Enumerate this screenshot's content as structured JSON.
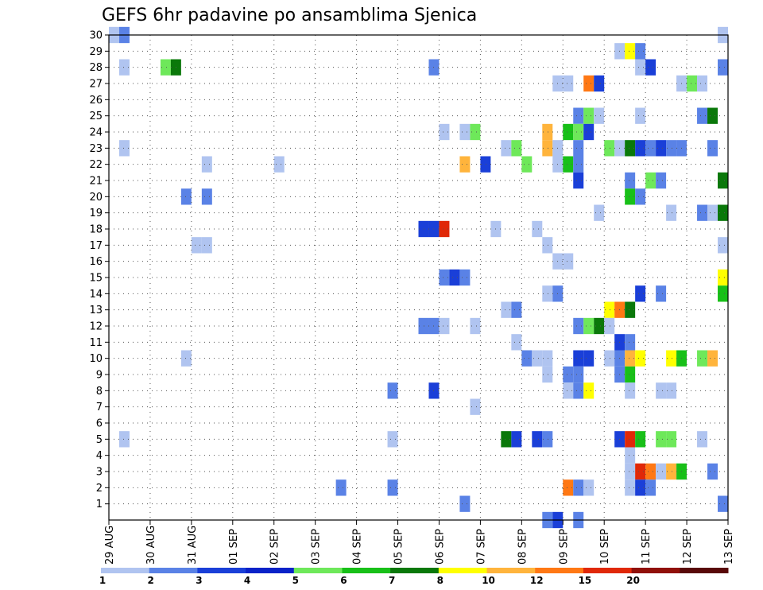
{
  "chart_data": {
    "type": "heatmap",
    "title": "GEFS 6hr padavine po ansamblima Sjenica",
    "xlabel": "",
    "ylabel": "",
    "x_ticks": [
      "29 AUG",
      "30 AUG",
      "31 AUG",
      "01 SEP",
      "02 SEP",
      "03 SEP",
      "04 SEP",
      "05 SEP",
      "06 SEP",
      "07 SEP",
      "08 SEP",
      "09 SEP",
      "10 SEP",
      "11 SEP",
      "12 SEP",
      "13 SEP"
    ],
    "y_ticks": [
      "1",
      "2",
      "3",
      "4",
      "5",
      "6",
      "7",
      "8",
      "9",
      "10",
      "11",
      "12",
      "13",
      "14",
      "15",
      "16",
      "17",
      "18",
      "19",
      "20",
      "21",
      "22",
      "23",
      "24",
      "25",
      "26",
      "27",
      "28",
      "29",
      "30"
    ],
    "ylim": [
      0,
      30
    ],
    "steps_per_day": 4,
    "grid": true,
    "legend": {
      "position": "bottom",
      "labels": [
        "1",
        "2",
        "3",
        "4",
        "5",
        "6",
        "7",
        "8",
        "10",
        "12",
        "15",
        "20"
      ],
      "colors": [
        "#b0c4f0",
        "#5a82e6",
        "#1a3fd8",
        "#0a22c8",
        "#6ee85a",
        "#18c018",
        "#0a780a",
        "#ffff00",
        "#ffb43c",
        "#ff7814",
        "#e02808",
        "#901008",
        "#580808"
      ]
    },
    "cells": [
      {
        "m": 30,
        "t": 0,
        "c": 0
      },
      {
        "m": 30,
        "t": 1,
        "c": 1
      },
      {
        "m": 30,
        "t": 59,
        "c": 0
      },
      {
        "m": 29,
        "t": 49,
        "c": 0
      },
      {
        "m": 29,
        "t": 50,
        "c": 7
      },
      {
        "m": 29,
        "t": 51,
        "c": 1
      },
      {
        "m": 28,
        "t": 1,
        "c": 0
      },
      {
        "m": 28,
        "t": 5,
        "c": 4
      },
      {
        "m": 28,
        "t": 6,
        "c": 6
      },
      {
        "m": 28,
        "t": 31,
        "c": 1
      },
      {
        "m": 28,
        "t": 51,
        "c": 0
      },
      {
        "m": 28,
        "t": 52,
        "c": 2
      },
      {
        "m": 28,
        "t": 59,
        "c": 1
      },
      {
        "m": 27,
        "t": 43,
        "c": 0
      },
      {
        "m": 27,
        "t": 44,
        "c": 0
      },
      {
        "m": 27,
        "t": 46,
        "c": 9
      },
      {
        "m": 27,
        "t": 47,
        "c": 2
      },
      {
        "m": 27,
        "t": 55,
        "c": 0
      },
      {
        "m": 27,
        "t": 56,
        "c": 4
      },
      {
        "m": 27,
        "t": 57,
        "c": 0
      },
      {
        "m": 25,
        "t": 45,
        "c": 1
      },
      {
        "m": 25,
        "t": 46,
        "c": 4
      },
      {
        "m": 25,
        "t": 47,
        "c": 0
      },
      {
        "m": 25,
        "t": 51,
        "c": 0
      },
      {
        "m": 25,
        "t": 57,
        "c": 1
      },
      {
        "m": 25,
        "t": 58,
        "c": 6
      },
      {
        "m": 24,
        "t": 32,
        "c": 0
      },
      {
        "m": 24,
        "t": 34,
        "c": 0
      },
      {
        "m": 24,
        "t": 35,
        "c": 4
      },
      {
        "m": 24,
        "t": 42,
        "c": 8
      },
      {
        "m": 24,
        "t": 44,
        "c": 5
      },
      {
        "m": 24,
        "t": 45,
        "c": 4
      },
      {
        "m": 24,
        "t": 46,
        "c": 2
      },
      {
        "m": 23,
        "t": 1,
        "c": 0
      },
      {
        "m": 23,
        "t": 38,
        "c": 0
      },
      {
        "m": 23,
        "t": 39,
        "c": 4
      },
      {
        "m": 23,
        "t": 42,
        "c": 8
      },
      {
        "m": 23,
        "t": 43,
        "c": 0
      },
      {
        "m": 23,
        "t": 45,
        "c": 1
      },
      {
        "m": 23,
        "t": 48,
        "c": 4
      },
      {
        "m": 23,
        "t": 49,
        "c": 0
      },
      {
        "m": 23,
        "t": 50,
        "c": 6
      },
      {
        "m": 23,
        "t": 51,
        "c": 2
      },
      {
        "m": 23,
        "t": 52,
        "c": 1
      },
      {
        "m": 23,
        "t": 53,
        "c": 2
      },
      {
        "m": 23,
        "t": 54,
        "c": 1
      },
      {
        "m": 23,
        "t": 55,
        "c": 1
      },
      {
        "m": 23,
        "t": 58,
        "c": 1
      },
      {
        "m": 22,
        "t": 9,
        "c": 0
      },
      {
        "m": 22,
        "t": 16,
        "c": 0
      },
      {
        "m": 22,
        "t": 34,
        "c": 8
      },
      {
        "m": 22,
        "t": 36,
        "c": 2
      },
      {
        "m": 22,
        "t": 40,
        "c": 4
      },
      {
        "m": 22,
        "t": 43,
        "c": 0
      },
      {
        "m": 22,
        "t": 44,
        "c": 5
      },
      {
        "m": 22,
        "t": 45,
        "c": 1
      },
      {
        "m": 21,
        "t": 45,
        "c": 2
      },
      {
        "m": 21,
        "t": 50,
        "c": 1
      },
      {
        "m": 21,
        "t": 52,
        "c": 4
      },
      {
        "m": 21,
        "t": 53,
        "c": 1
      },
      {
        "m": 21,
        "t": 59,
        "c": 6
      },
      {
        "m": 20,
        "t": 7,
        "c": 1
      },
      {
        "m": 20,
        "t": 9,
        "c": 1
      },
      {
        "m": 20,
        "t": 50,
        "c": 5
      },
      {
        "m": 20,
        "t": 51,
        "c": 1
      },
      {
        "m": 19,
        "t": 47,
        "c": 0
      },
      {
        "m": 19,
        "t": 54,
        "c": 0
      },
      {
        "m": 19,
        "t": 57,
        "c": 1
      },
      {
        "m": 19,
        "t": 58,
        "c": 0
      },
      {
        "m": 19,
        "t": 59,
        "c": 6
      },
      {
        "m": 18,
        "t": 30,
        "c": 2
      },
      {
        "m": 18,
        "t": 31,
        "c": 2
      },
      {
        "m": 18,
        "t": 32,
        "c": 10
      },
      {
        "m": 18,
        "t": 37,
        "c": 0
      },
      {
        "m": 18,
        "t": 41,
        "c": 0
      },
      {
        "m": 17,
        "t": 8,
        "c": 0
      },
      {
        "m": 17,
        "t": 9,
        "c": 0
      },
      {
        "m": 17,
        "t": 42,
        "c": 0
      },
      {
        "m": 17,
        "t": 59,
        "c": 0
      },
      {
        "m": 16,
        "t": 43,
        "c": 0
      },
      {
        "m": 16,
        "t": 44,
        "c": 0
      },
      {
        "m": 15,
        "t": 32,
        "c": 1
      },
      {
        "m": 15,
        "t": 33,
        "c": 2
      },
      {
        "m": 15,
        "t": 34,
        "c": 1
      },
      {
        "m": 15,
        "t": 59,
        "c": 7
      },
      {
        "m": 14,
        "t": 42,
        "c": 0
      },
      {
        "m": 14,
        "t": 43,
        "c": 1
      },
      {
        "m": 14,
        "t": 51,
        "c": 2
      },
      {
        "m": 14,
        "t": 53,
        "c": 1
      },
      {
        "m": 14,
        "t": 59,
        "c": 5
      },
      {
        "m": 13,
        "t": 38,
        "c": 0
      },
      {
        "m": 13,
        "t": 39,
        "c": 1
      },
      {
        "m": 13,
        "t": 48,
        "c": 7
      },
      {
        "m": 13,
        "t": 49,
        "c": 9
      },
      {
        "m": 13,
        "t": 50,
        "c": 6
      },
      {
        "m": 12,
        "t": 30,
        "c": 1
      },
      {
        "m": 12,
        "t": 31,
        "c": 1
      },
      {
        "m": 12,
        "t": 32,
        "c": 0
      },
      {
        "m": 12,
        "t": 35,
        "c": 0
      },
      {
        "m": 12,
        "t": 45,
        "c": 1
      },
      {
        "m": 12,
        "t": 46,
        "c": 4
      },
      {
        "m": 12,
        "t": 47,
        "c": 6
      },
      {
        "m": 12,
        "t": 48,
        "c": 0
      },
      {
        "m": 11,
        "t": 39,
        "c": 0
      },
      {
        "m": 11,
        "t": 49,
        "c": 2
      },
      {
        "m": 11,
        "t": 50,
        "c": 1
      },
      {
        "m": 10,
        "t": 7,
        "c": 0
      },
      {
        "m": 10,
        "t": 40,
        "c": 1
      },
      {
        "m": 10,
        "t": 41,
        "c": 0
      },
      {
        "m": 10,
        "t": 42,
        "c": 0
      },
      {
        "m": 10,
        "t": 45,
        "c": 2
      },
      {
        "m": 10,
        "t": 46,
        "c": 2
      },
      {
        "m": 10,
        "t": 48,
        "c": 0
      },
      {
        "m": 10,
        "t": 49,
        "c": 1
      },
      {
        "m": 10,
        "t": 50,
        "c": 8
      },
      {
        "m": 10,
        "t": 51,
        "c": 7
      },
      {
        "m": 10,
        "t": 54,
        "c": 7
      },
      {
        "m": 10,
        "t": 55,
        "c": 5
      },
      {
        "m": 10,
        "t": 57,
        "c": 4
      },
      {
        "m": 10,
        "t": 58,
        "c": 8
      },
      {
        "m": 9,
        "t": 42,
        "c": 0
      },
      {
        "m": 9,
        "t": 44,
        "c": 1
      },
      {
        "m": 9,
        "t": 45,
        "c": 1
      },
      {
        "m": 9,
        "t": 49,
        "c": 1
      },
      {
        "m": 9,
        "t": 50,
        "c": 5
      },
      {
        "m": 8,
        "t": 27,
        "c": 1
      },
      {
        "m": 8,
        "t": 31,
        "c": 2
      },
      {
        "m": 8,
        "t": 44,
        "c": 0
      },
      {
        "m": 8,
        "t": 45,
        "c": 1
      },
      {
        "m": 8,
        "t": 46,
        "c": 7
      },
      {
        "m": 8,
        "t": 50,
        "c": 0
      },
      {
        "m": 8,
        "t": 53,
        "c": 0
      },
      {
        "m": 8,
        "t": 54,
        "c": 0
      },
      {
        "m": 7,
        "t": 35,
        "c": 0
      },
      {
        "m": 5,
        "t": 1,
        "c": 0
      },
      {
        "m": 5,
        "t": 27,
        "c": 0
      },
      {
        "m": 5,
        "t": 38,
        "c": 6
      },
      {
        "m": 5,
        "t": 39,
        "c": 2
      },
      {
        "m": 5,
        "t": 41,
        "c": 2
      },
      {
        "m": 5,
        "t": 42,
        "c": 1
      },
      {
        "m": 5,
        "t": 49,
        "c": 2
      },
      {
        "m": 5,
        "t": 50,
        "c": 10
      },
      {
        "m": 5,
        "t": 51,
        "c": 5
      },
      {
        "m": 5,
        "t": 53,
        "c": 4
      },
      {
        "m": 5,
        "t": 54,
        "c": 4
      },
      {
        "m": 5,
        "t": 57,
        "c": 0
      },
      {
        "m": 4,
        "t": 50,
        "c": 0
      },
      {
        "m": 3,
        "t": 50,
        "c": 0
      },
      {
        "m": 3,
        "t": 51,
        "c": 10
      },
      {
        "m": 3,
        "t": 52,
        "c": 9
      },
      {
        "m": 3,
        "t": 53,
        "c": 0
      },
      {
        "m": 3,
        "t": 54,
        "c": 8
      },
      {
        "m": 3,
        "t": 55,
        "c": 5
      },
      {
        "m": 3,
        "t": 58,
        "c": 1
      },
      {
        "m": 2,
        "t": 22,
        "c": 1
      },
      {
        "m": 2,
        "t": 27,
        "c": 1
      },
      {
        "m": 2,
        "t": 44,
        "c": 9
      },
      {
        "m": 2,
        "t": 45,
        "c": 1
      },
      {
        "m": 2,
        "t": 46,
        "c": 0
      },
      {
        "m": 2,
        "t": 50,
        "c": 0
      },
      {
        "m": 2,
        "t": 51,
        "c": 2
      },
      {
        "m": 2,
        "t": 52,
        "c": 1
      },
      {
        "m": 1,
        "t": 34,
        "c": 1
      },
      {
        "m": 1,
        "t": 59,
        "c": 1
      },
      {
        "m": 0,
        "t": 42,
        "c": 1
      },
      {
        "m": 0,
        "t": 43,
        "c": 2
      },
      {
        "m": 0,
        "t": 45,
        "c": 1
      }
    ]
  }
}
